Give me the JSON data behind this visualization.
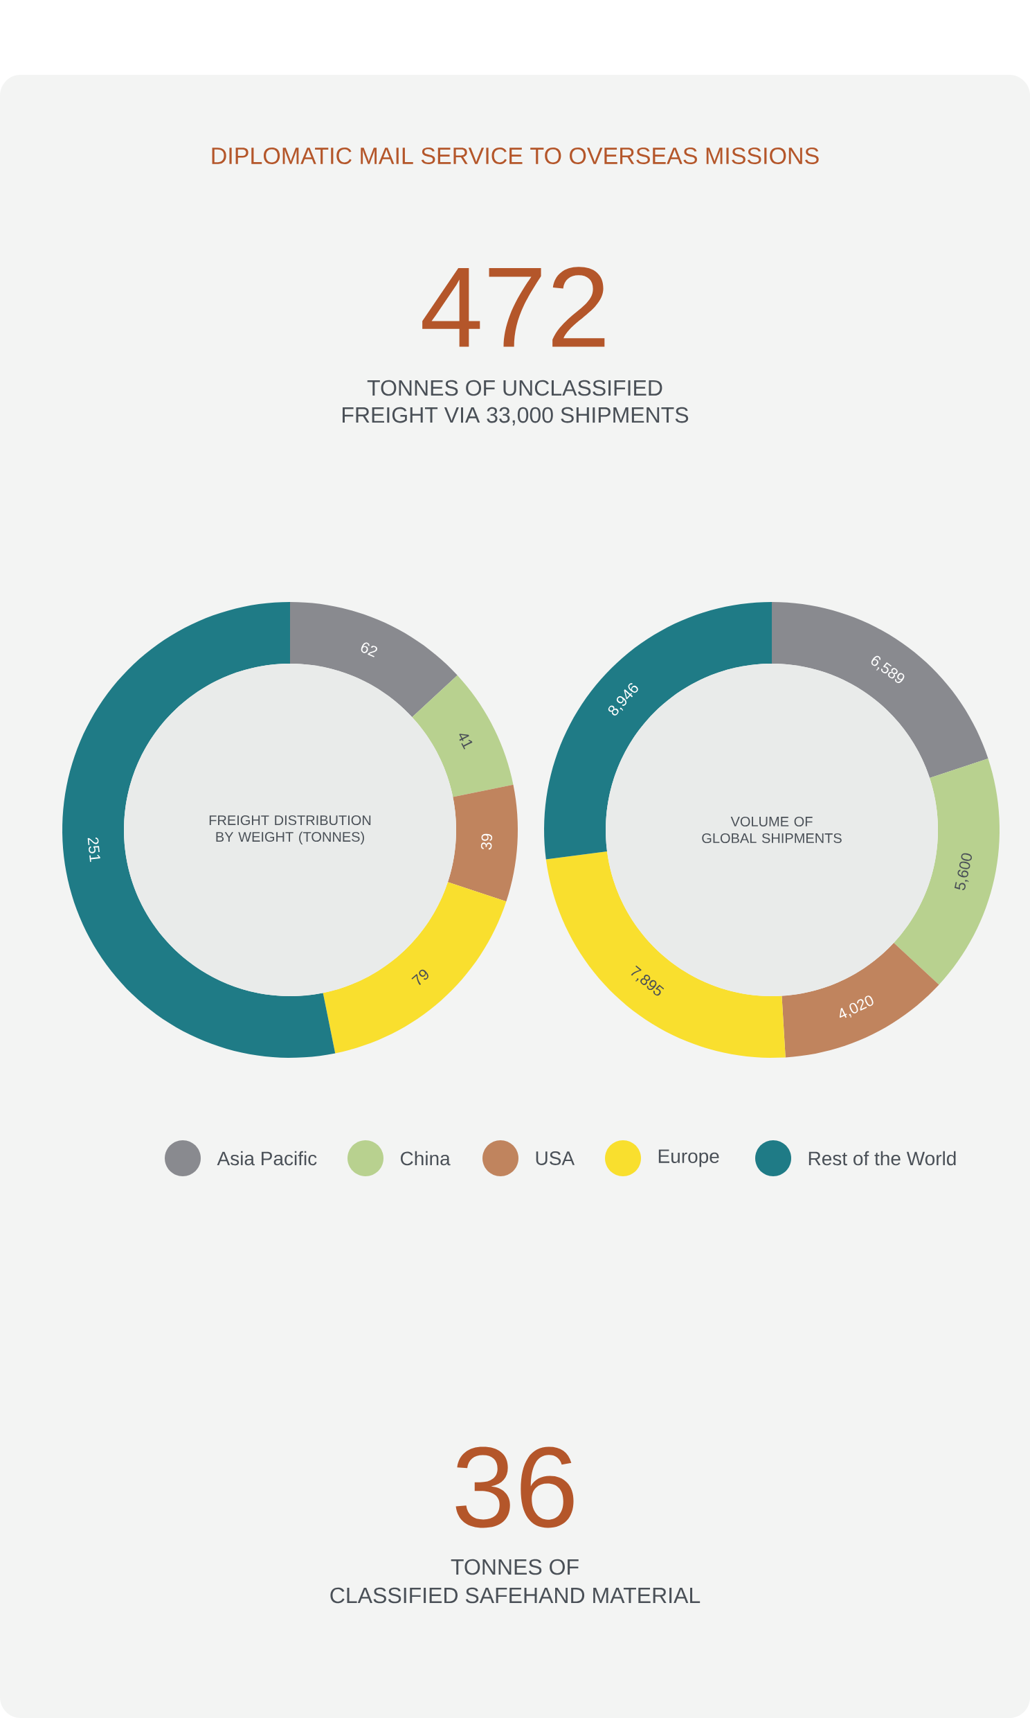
{
  "chart_data": [
    {
      "type": "other",
      "title": "DIPLOMATIC MAIL SERVICE TO OVERSEAS MISSIONS",
      "annotations": [
        "472",
        "TONNES OF UNCLASSIFIED",
        "FREIGHT VIA 33,000 SHIPMENTS"
      ]
    },
    {
      "type": "donut",
      "title": "FREIGHT DISTRIBUTION BY WEIGHT (TONNES)",
      "categories": [
        "Asia Pacific",
        "China",
        "USA",
        "Europe",
        "Rest of the World"
      ],
      "values": [
        62,
        41,
        39,
        79,
        251
      ],
      "colors": [
        "#898a8f",
        "#b8d18f",
        "#c0845e",
        "#f9df2e",
        "#1f7b86"
      ],
      "value_labels": [
        "62",
        "41",
        "39",
        "79",
        "251"
      ],
      "legend": "bottom"
    },
    {
      "type": "donut",
      "title": "VOLUME OF GLOBAL SHIPMENTS",
      "categories": [
        null,
        null,
        null,
        null,
        null
      ],
      "values": [
        6589,
        5600,
        4020,
        7895,
        8946
      ],
      "colors": [
        "#898a8f",
        "#b8d18f",
        "#c0845e",
        "#f9df2e",
        "#1f7b86"
      ],
      "value_labels": [
        "6,589",
        "5,600",
        "4,020",
        "7,895",
        "8,946"
      ]
    },
    {
      "type": "other",
      "annotations": [
        "36",
        "TONNES OF",
        "CLASSIFIED SAFEHAND MATERIAL"
      ]
    }
  ]
}
